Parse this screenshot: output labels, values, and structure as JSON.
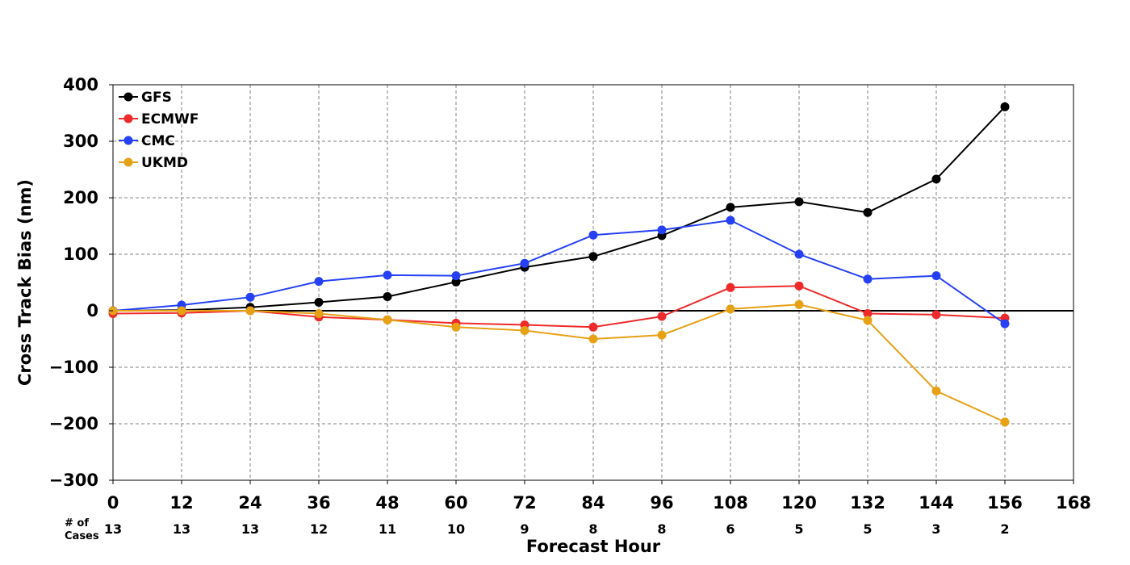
{
  "chart_data": {
    "type": "line",
    "title": "",
    "xlabel": "Forecast Hour",
    "ylabel": "Cross Track Bias (nm)",
    "xlim": [
      0,
      168
    ],
    "ylim": [
      -300,
      400
    ],
    "xticks": [
      0,
      12,
      24,
      36,
      48,
      60,
      72,
      84,
      96,
      108,
      120,
      132,
      144,
      156,
      168
    ],
    "xtick_labels": [
      "0",
      "12",
      "24",
      "36",
      "48",
      "60",
      "72",
      "84",
      "96",
      "108",
      "120",
      "132",
      "144",
      "156",
      "168"
    ],
    "yticks": [
      -300,
      -200,
      -100,
      0,
      100,
      200,
      300,
      400
    ],
    "ytick_labels": [
      "−300",
      "−200",
      "−100",
      "0",
      "100",
      "200",
      "300",
      "400"
    ],
    "grid": true,
    "legend_position": "top-left",
    "x": [
      0,
      12,
      24,
      36,
      48,
      60,
      72,
      84,
      96,
      108,
      120,
      132,
      144,
      156
    ],
    "series": [
      {
        "name": "GFS",
        "color": "#000000",
        "values": [
          0,
          1,
          6,
          15,
          25,
          51,
          77,
          96,
          133,
          183,
          193,
          174,
          233,
          361
        ]
      },
      {
        "name": "ECMWF",
        "color": "#ee2a2a",
        "values": [
          -5,
          -4,
          0,
          -11,
          -16,
          -22,
          -25,
          -29,
          -10,
          41,
          44,
          -5,
          -7,
          -13
        ]
      },
      {
        "name": "CMC",
        "color": "#2540f5",
        "values": [
          0,
          10,
          24,
          52,
          63,
          62,
          84,
          134,
          143,
          160,
          100,
          56,
          62,
          -23
        ]
      },
      {
        "name": "UKMD",
        "color": "#e6a115",
        "values": [
          0,
          0,
          0,
          -5,
          -16,
          -29,
          -35,
          -50,
          -43,
          3,
          11,
          -17,
          -142,
          -197
        ]
      }
    ],
    "cases": {
      "label_line1": "# of",
      "label_line2": "Cases",
      "values": [
        "13",
        "13",
        "13",
        "12",
        "11",
        "10",
        "9",
        "8",
        "8",
        "6",
        "5",
        "5",
        "3",
        "2"
      ]
    }
  }
}
